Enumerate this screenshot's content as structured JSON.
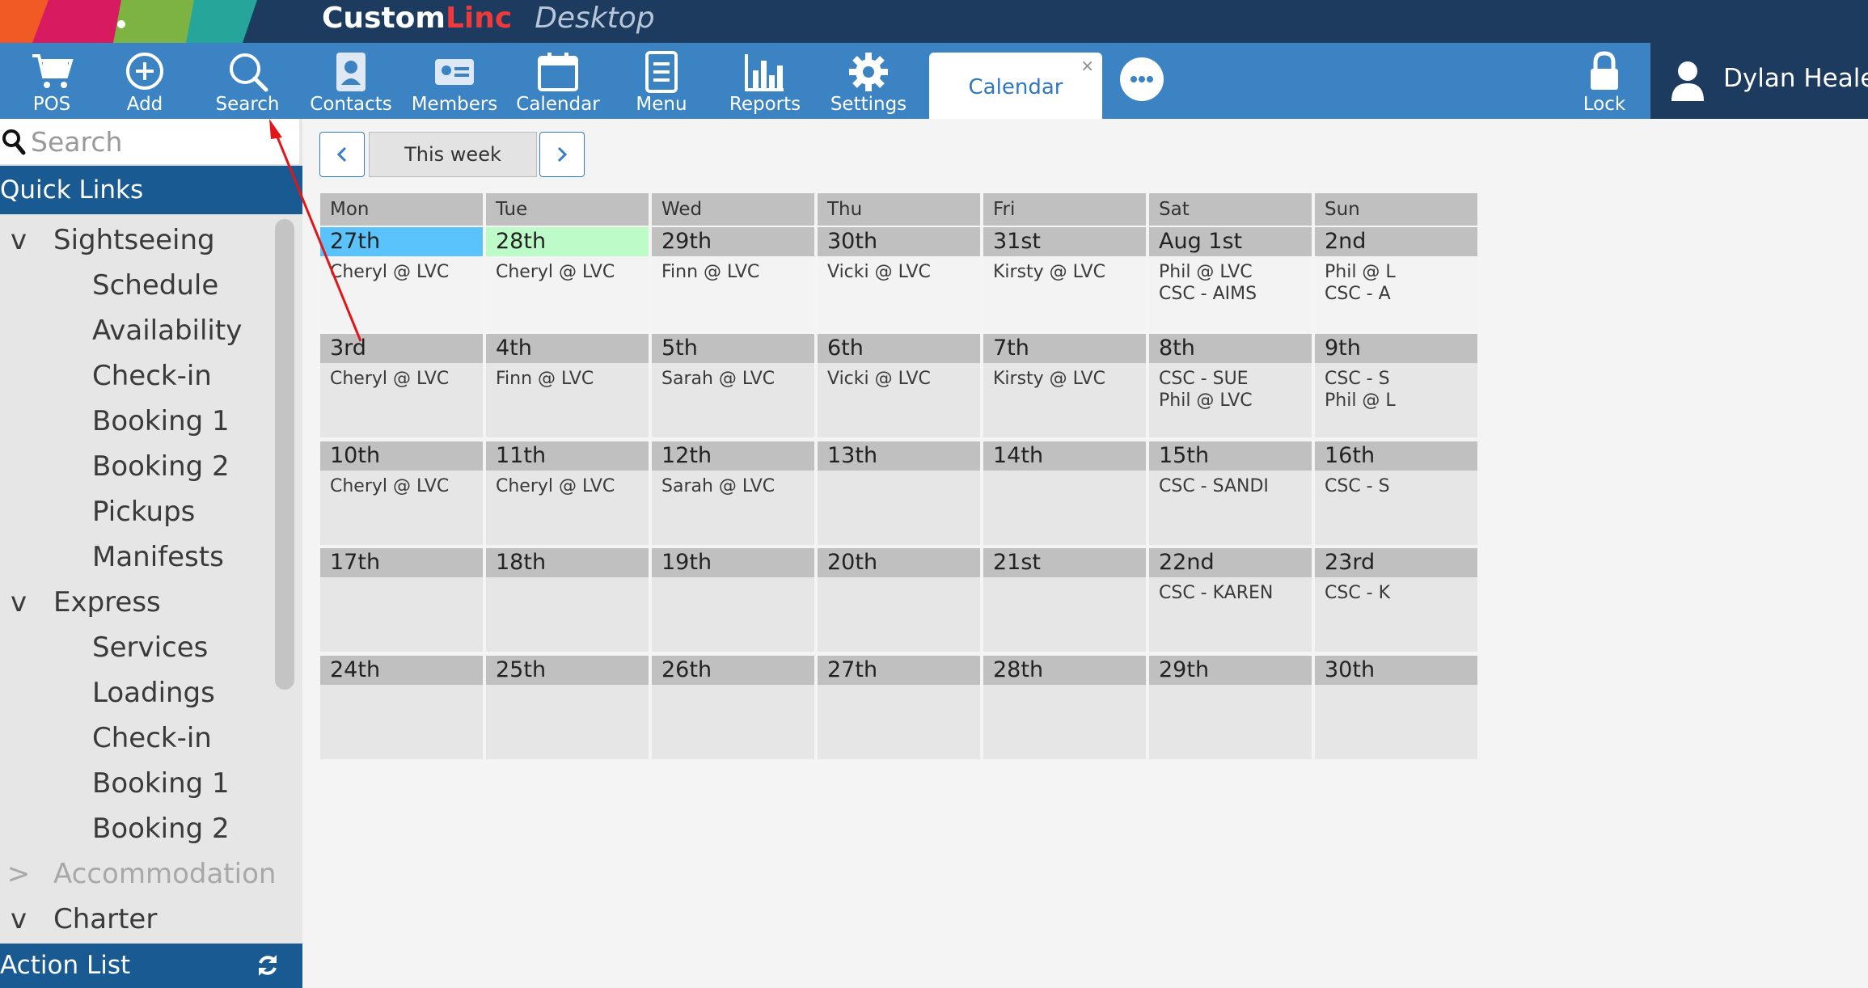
{
  "app": {
    "brand_main": "Custom",
    "brand_accent": "Linc",
    "brand_sub": "Desktop"
  },
  "toolbar": {
    "buttons": [
      {
        "label": "POS",
        "icon": "cart-icon"
      },
      {
        "label": "Add",
        "icon": "plus-circle-icon"
      },
      {
        "label": "Search",
        "icon": "search-icon"
      },
      {
        "label": "Contacts",
        "icon": "contacts-icon"
      },
      {
        "label": "Members",
        "icon": "member-card-icon"
      },
      {
        "label": "Calendar",
        "icon": "calendar-icon"
      },
      {
        "label": "Menu",
        "icon": "menu-icon"
      },
      {
        "label": "Reports",
        "icon": "bar-chart-icon"
      },
      {
        "label": "Settings",
        "icon": "gear-icon"
      }
    ],
    "active_tab": "Calendar",
    "tab_close": "×",
    "lock_label": "Lock",
    "user_name": "Dylan Heale"
  },
  "sidebar": {
    "search_placeholder": "Search",
    "quick_links_title": "Quick Links",
    "items": [
      {
        "label": "Sightseeing",
        "type": "group",
        "chev": "v"
      },
      {
        "label": "Schedule",
        "type": "child"
      },
      {
        "label": "Availability",
        "type": "child"
      },
      {
        "label": "Check-in",
        "type": "child"
      },
      {
        "label": "Booking 1",
        "type": "child"
      },
      {
        "label": "Booking 2",
        "type": "child"
      },
      {
        "label": "Pickups",
        "type": "child"
      },
      {
        "label": "Manifests",
        "type": "child"
      },
      {
        "label": "Express",
        "type": "group",
        "chev": "v"
      },
      {
        "label": "Services",
        "type": "child"
      },
      {
        "label": "Loadings",
        "type": "child"
      },
      {
        "label": "Check-in",
        "type": "child"
      },
      {
        "label": "Booking 1",
        "type": "child"
      },
      {
        "label": "Booking 2",
        "type": "child"
      },
      {
        "label": "Accommodation",
        "type": "group",
        "chev": ">",
        "disabled": true
      },
      {
        "label": "Charter",
        "type": "group",
        "chev": "v"
      }
    ],
    "action_list_title": "Action List"
  },
  "calendar": {
    "nav": {
      "prev": "<",
      "week_label": "This week",
      "next": ">"
    },
    "day_headers": [
      "Mon",
      "Tue",
      "Wed",
      "Thu",
      "Fri",
      "Sat",
      "Sun"
    ],
    "weeks": [
      [
        {
          "date": "27th",
          "events": [
            "Cheryl @ LVC"
          ],
          "highlight": "today"
        },
        {
          "date": "28th",
          "events": [
            "Cheryl @ LVC"
          ],
          "highlight": "tomorrow"
        },
        {
          "date": "29th",
          "events": [
            "Finn @ LVC"
          ]
        },
        {
          "date": "30th",
          "events": [
            "Vicki @ LVC"
          ]
        },
        {
          "date": "31st",
          "events": [
            "Kirsty @ LVC"
          ]
        },
        {
          "date": "Aug 1st",
          "events": [
            "Phil @ LVC",
            "CSC - AIMS"
          ]
        },
        {
          "date": "2nd",
          "events": [
            "Phil @ L",
            "CSC - A"
          ]
        }
      ],
      [
        {
          "date": "3rd",
          "events": [
            "Cheryl @ LVC"
          ]
        },
        {
          "date": "4th",
          "events": [
            "Finn @ LVC"
          ]
        },
        {
          "date": "5th",
          "events": [
            "Sarah @ LVC"
          ]
        },
        {
          "date": "6th",
          "events": [
            "Vicki @ LVC"
          ]
        },
        {
          "date": "7th",
          "events": [
            "Kirsty @ LVC"
          ]
        },
        {
          "date": "8th",
          "events": [
            "CSC - SUE",
            "Phil @ LVC"
          ]
        },
        {
          "date": "9th",
          "events": [
            "CSC - S",
            "Phil @ L"
          ]
        }
      ],
      [
        {
          "date": "10th",
          "events": [
            "Cheryl @ LVC"
          ]
        },
        {
          "date": "11th",
          "events": [
            "Cheryl @ LVC"
          ]
        },
        {
          "date": "12th",
          "events": [
            "Sarah @ LVC"
          ]
        },
        {
          "date": "13th",
          "events": []
        },
        {
          "date": "14th",
          "events": []
        },
        {
          "date": "15th",
          "events": [
            "CSC - SANDI"
          ]
        },
        {
          "date": "16th",
          "events": [
            "CSC - S"
          ]
        }
      ],
      [
        {
          "date": "17th",
          "events": []
        },
        {
          "date": "18th",
          "events": []
        },
        {
          "date": "19th",
          "events": []
        },
        {
          "date": "20th",
          "events": []
        },
        {
          "date": "21st",
          "events": []
        },
        {
          "date": "22nd",
          "events": [
            "CSC - KAREN"
          ]
        },
        {
          "date": "23rd",
          "events": [
            "CSC - K"
          ]
        }
      ],
      [
        {
          "date": "24th",
          "events": []
        },
        {
          "date": "25th",
          "events": []
        },
        {
          "date": "26th",
          "events": []
        },
        {
          "date": "27th",
          "events": []
        },
        {
          "date": "28th",
          "events": []
        },
        {
          "date": "29th",
          "events": []
        },
        {
          "date": "30th",
          "events": []
        }
      ]
    ]
  },
  "colors": {
    "title_bar": "#1d3a5f",
    "toolbar": "#3b83c3",
    "sidebar_header": "#1a5a92",
    "today": "#5bc3fb",
    "tomorrow": "#bdfbc8",
    "annotation_arrow": "#e0161b"
  }
}
